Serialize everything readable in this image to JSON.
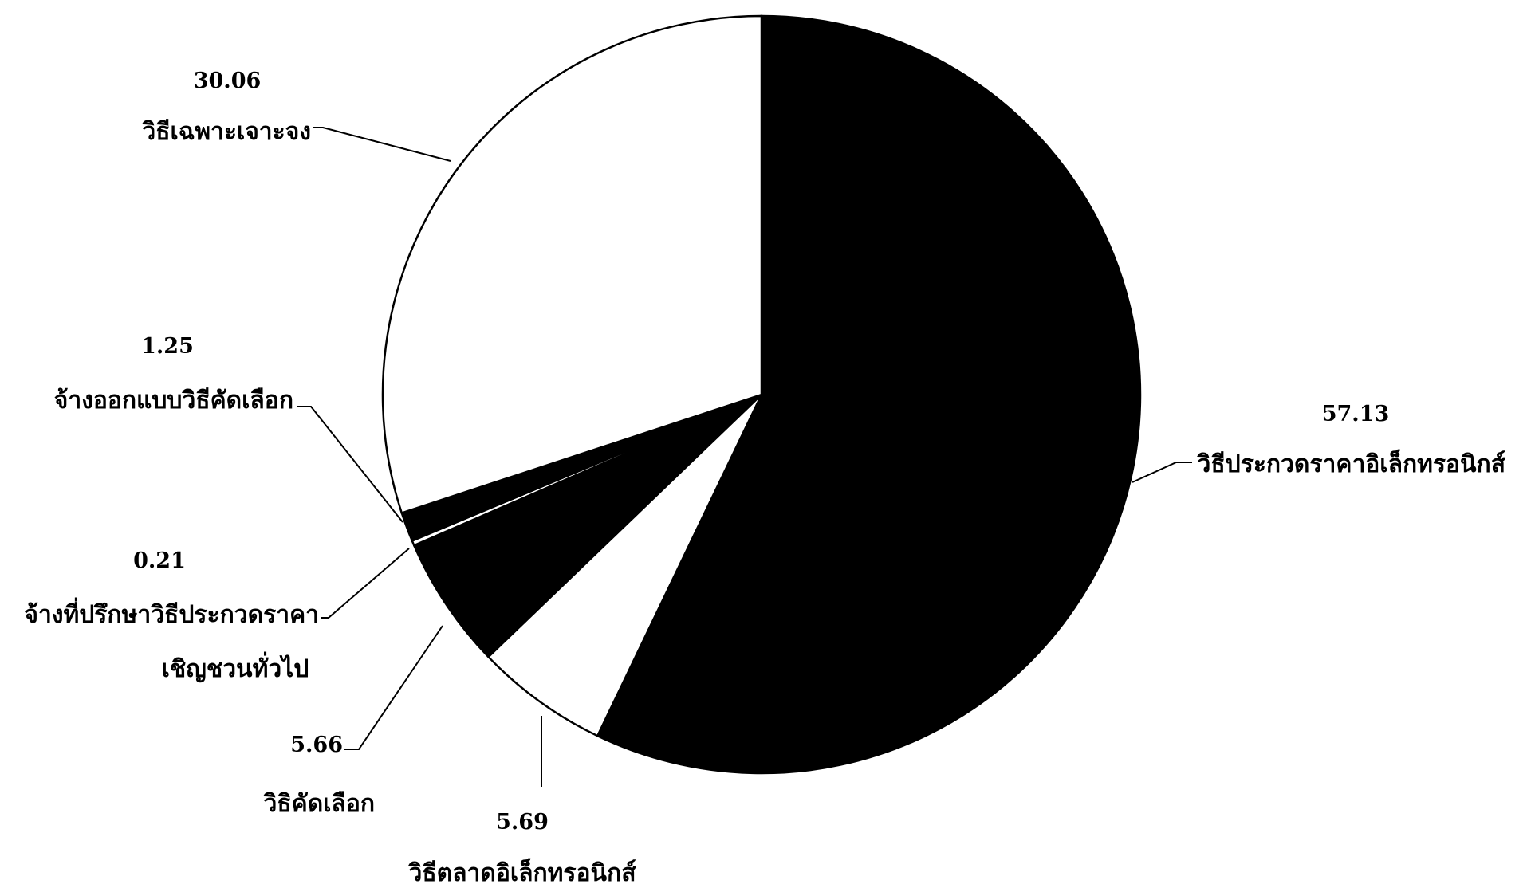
{
  "chart_data": {
    "type": "pie",
    "title": "",
    "start_angle_deg": 0,
    "direction": "clockwise",
    "slices": [
      {
        "value": 57.13,
        "label": "วิธีประกวดราคาอิเล็กทรอนิกส์",
        "color": "#000000"
      },
      {
        "value": 5.69,
        "label": "วิธีตลาดอิเล็กทรอนิกส์",
        "color": "#ffffff"
      },
      {
        "value": 5.66,
        "label": "วิธิคัดเลือก",
        "color": "#000000"
      },
      {
        "value": 0.21,
        "label": "จ้างที่ปรึกษาวิธีประกวดราคาเชิญชวนทั่วไป",
        "label_lines": [
          "จ้างที่ปรึกษาวิธีประกวดราคา",
          "เชิญชวนทั่วไป"
        ],
        "color": "#ffffff"
      },
      {
        "value": 1.25,
        "label": "จ้างออกแบบวิธีคัดเลือก",
        "color": "#000000"
      },
      {
        "value": 30.06,
        "label": "วิธีเฉพาะเจาะจง",
        "color": "#ffffff"
      }
    ]
  }
}
